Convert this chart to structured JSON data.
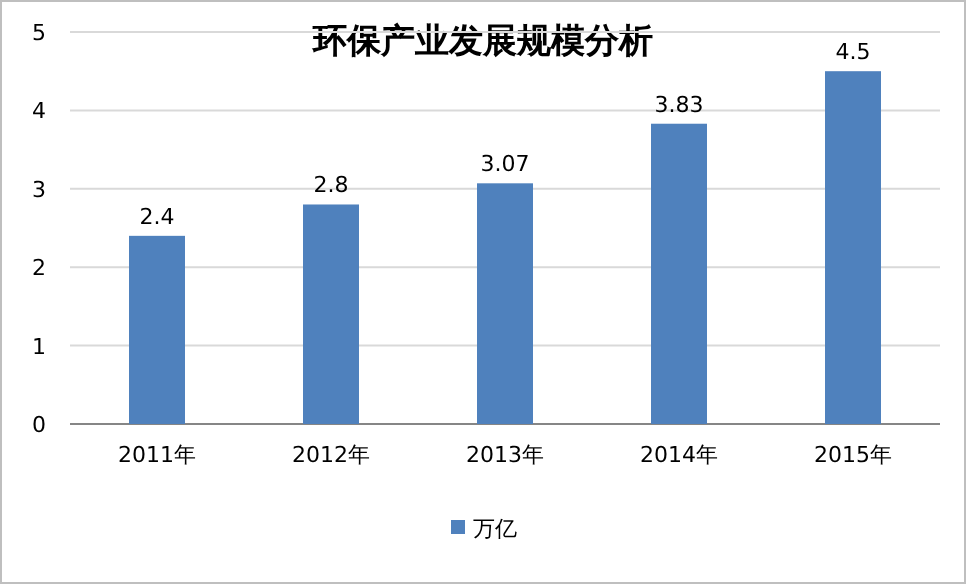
{
  "chart_data": {
    "type": "bar",
    "title": "环保产业发展规模分析",
    "categories": [
      "2011年",
      "2012年",
      "2013年",
      "2014年",
      "2015年"
    ],
    "series": [
      {
        "name": "万亿",
        "color": "#4f81bd",
        "values": [
          2.4,
          2.8,
          3.07,
          3.83,
          4.5
        ]
      }
    ],
    "ylim": [
      0,
      5
    ],
    "yticks": [
      0,
      1,
      2,
      3,
      4,
      5
    ],
    "grid": "y",
    "legend": "bottom",
    "data_labels": true
  }
}
